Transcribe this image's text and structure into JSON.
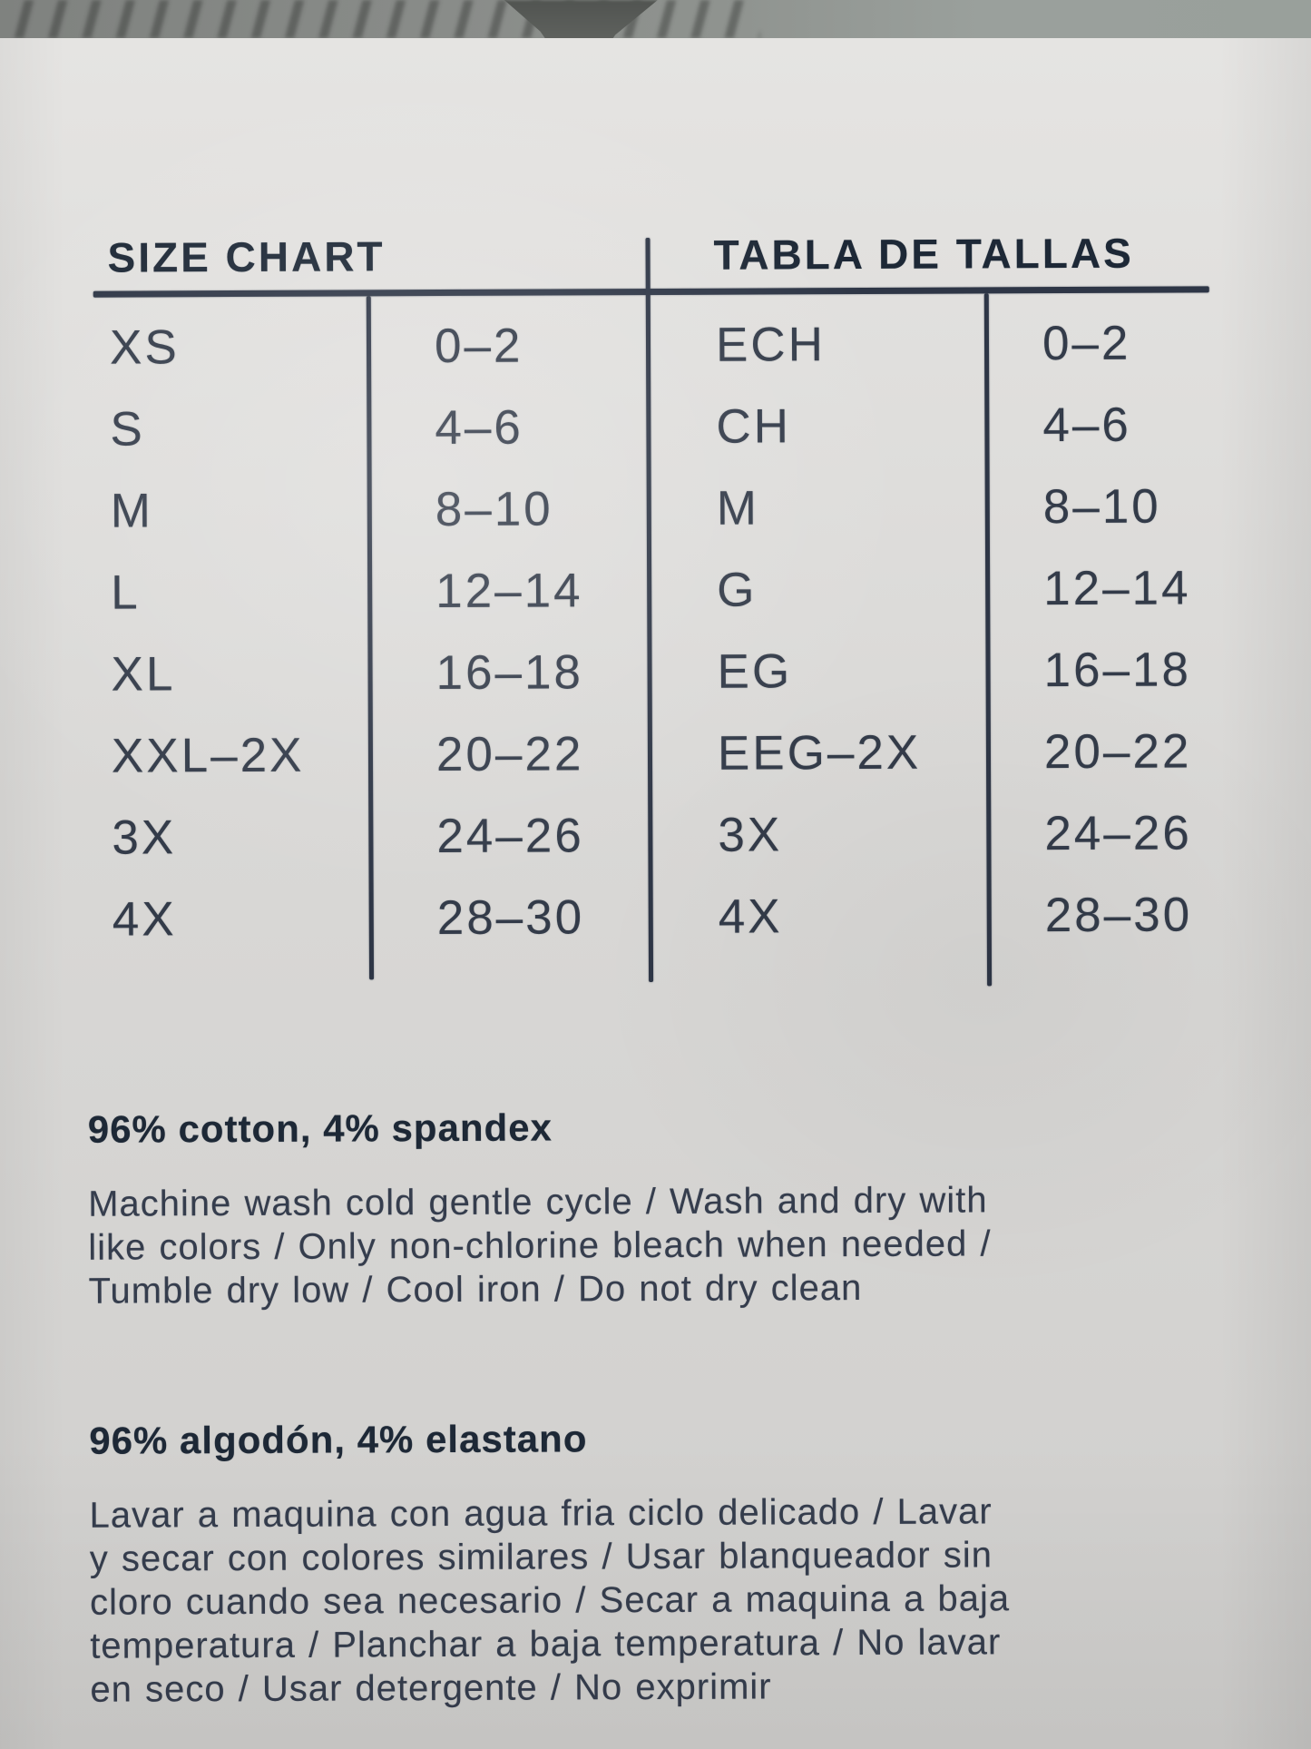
{
  "palette": {
    "ink": "#2e3646",
    "ink_strong": "#1d2836",
    "label_bg_top": "#e5e4e2",
    "label_bg_bottom": "#cfcecc",
    "fabric_gray": "#8b8e8b"
  },
  "size_chart": {
    "title_en": "SIZE CHART",
    "title_es": "TABLA DE TALLAS",
    "rows": [
      {
        "en_size": "XS",
        "en_range": "0–2",
        "es_size": "ECH",
        "es_range": "0–2"
      },
      {
        "en_size": "S",
        "en_range": "4–6",
        "es_size": "CH",
        "es_range": "4–6"
      },
      {
        "en_size": "M",
        "en_range": "8–10",
        "es_size": "M",
        "es_range": "8–10"
      },
      {
        "en_size": "L",
        "en_range": "12–14",
        "es_size": "G",
        "es_range": "12–14"
      },
      {
        "en_size": "XL",
        "en_range": "16–18",
        "es_size": "EG",
        "es_range": "16–18"
      },
      {
        "en_size": "XXL–2X",
        "en_range": "20–22",
        "es_size": "EEG–2X",
        "es_range": "20–22"
      },
      {
        "en_size": "3X",
        "en_range": "24–26",
        "es_size": "3X",
        "es_range": "24–26"
      },
      {
        "en_size": "4X",
        "en_range": "28–30",
        "es_size": "4X",
        "es_range": "28–30"
      }
    ]
  },
  "care_en": {
    "composition": "96% cotton, 4% spandex",
    "instructions_lines": [
      "Machine wash cold gentle cycle / Wash and dry with",
      "like colors / Only non-chlorine bleach when needed /",
      "Tumble dry low / Cool iron / Do not dry clean"
    ]
  },
  "care_es": {
    "composition": "96% algodón, 4% elastano",
    "instructions_lines": [
      "Lavar a maquina con agua fria ciclo delicado / Lavar",
      "y secar con colores similares / Usar blanqueador sin",
      "cloro cuando sea necesario / Secar a maquina a baja",
      "temperatura / Planchar a baja temperatura / No lavar",
      "en seco / Usar detergente / No exprimir"
    ]
  }
}
